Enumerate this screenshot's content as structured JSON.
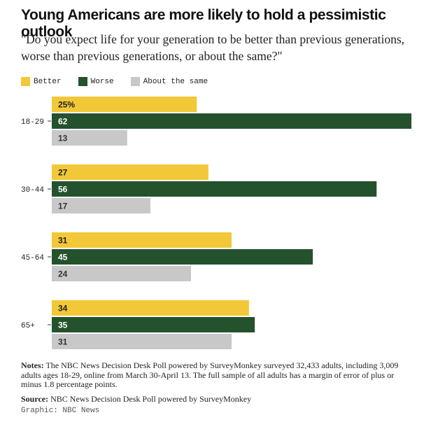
{
  "title": "Young Americans are more likely to hold a pessimistic outlook",
  "subtitle": "\"Do you expect life for your generation to be better than previous generations, worse than previous generations, or about the same?\"",
  "notes_label": "Notes:",
  "notes_text": "The NBC News Decision Desk Poll powered by SurveyMonkey surveyed 32,433 adults, including 3,009 adults ages 18-29, online from March 30-April 13. The full sample of all adults has a margin of error of plus or minus 1.8 percentage points.",
  "source_label": "Source:",
  "source_text": "NBC News Decision Desk Poll powered by SurveyMonkey",
  "credit": "Graphic: NBC News",
  "chart_data": {
    "type": "bar",
    "orientation": "horizontal",
    "categories": [
      "18-29",
      "30-44",
      "45-64",
      "65+"
    ],
    "series": [
      {
        "name": "Better",
        "color": "#f2c838",
        "values": [
          25,
          27,
          31,
          34
        ],
        "labels": [
          "25%",
          "27",
          "31",
          "34"
        ]
      },
      {
        "name": "Worse",
        "color": "#24522d",
        "values": [
          62,
          56,
          45,
          35
        ],
        "labels": [
          "62",
          "56",
          "45",
          "35"
        ]
      },
      {
        "name": "About the same",
        "color": "#c8c8c8",
        "values": [
          13,
          17,
          24,
          31
        ],
        "labels": [
          "13",
          "17",
          "24",
          "31"
        ]
      }
    ],
    "xlim": [
      0,
      62
    ],
    "unit": "%",
    "legend": "top-left",
    "grid": false
  }
}
